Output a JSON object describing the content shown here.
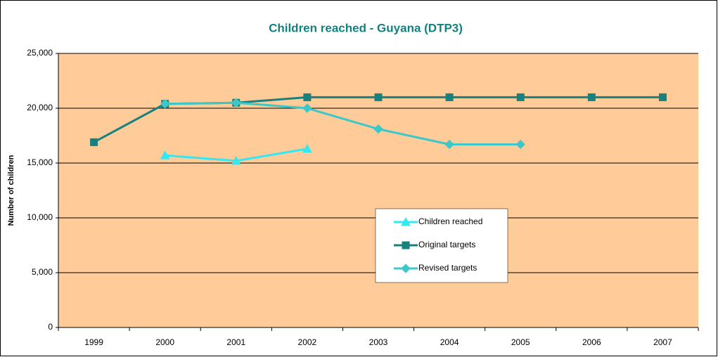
{
  "chart_data": {
    "type": "line",
    "title": "Children reached - Guyana (DTP3)",
    "y_label": "Number of children",
    "categories": [
      "1999",
      "2000",
      "2001",
      "2002",
      "2003",
      "2004",
      "2005",
      "2006",
      "2007"
    ],
    "series": [
      {
        "name": "Children reached",
        "color": "#33e8f0",
        "marker": "triangle",
        "values": [
          null,
          15700,
          15200,
          16300,
          null,
          null,
          null,
          null,
          null
        ]
      },
      {
        "name": "Original targets",
        "color": "#18807e",
        "marker": "square",
        "values": [
          16900,
          20400,
          20500,
          21000,
          21000,
          21000,
          21000,
          21000,
          21000
        ]
      },
      {
        "name": "Revised targets",
        "color": "#3cc8c8",
        "marker": "diamond",
        "values": [
          null,
          20400,
          20500,
          20000,
          18100,
          16700,
          16700,
          null,
          null
        ]
      }
    ],
    "ylim": [
      0,
      25000
    ],
    "yticks": [
      0,
      {
        "value": 5000,
        "label": "5,000"
      },
      {
        "value": 10000,
        "label": "10,000"
      },
      {
        "value": 15000,
        "label": "15,000"
      },
      {
        "value": 20000,
        "label": "20,000"
      },
      {
        "value": 25000,
        "label": "25,000"
      }
    ],
    "grid": true,
    "plot_background": "#ffcc99",
    "legend": "center"
  }
}
